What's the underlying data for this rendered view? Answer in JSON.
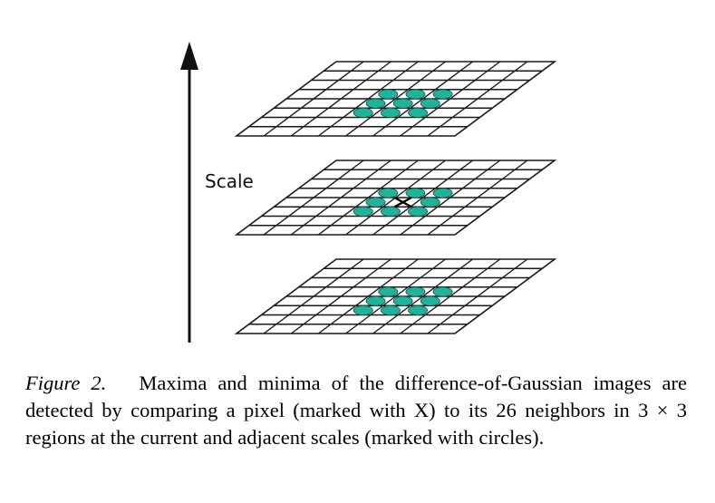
{
  "diagram": {
    "axis_label": "Scale",
    "marker_symbol": "X",
    "colors": {
      "neighbor_fill": "#1fb39a",
      "neighbor_stroke": "#124f44",
      "grid_stroke": "#1a1a1a",
      "axis": "#111111"
    },
    "layers": [
      {
        "name": "upper scale",
        "neighbors_marked": 9,
        "center_marked_x": false
      },
      {
        "name": "current scale",
        "neighbors_marked": 8,
        "center_marked_x": true
      },
      {
        "name": "lower scale",
        "neighbors_marked": 9,
        "center_marked_x": false
      }
    ]
  },
  "caption": {
    "label": "Figure 2.",
    "text": "Maxima and minima of the difference-of-Gaussian images are detected by comparing a pixel (marked with X) to its 26 neighbors in 3 × 3 regions at the current and adjacent scales (marked with circles)."
  }
}
